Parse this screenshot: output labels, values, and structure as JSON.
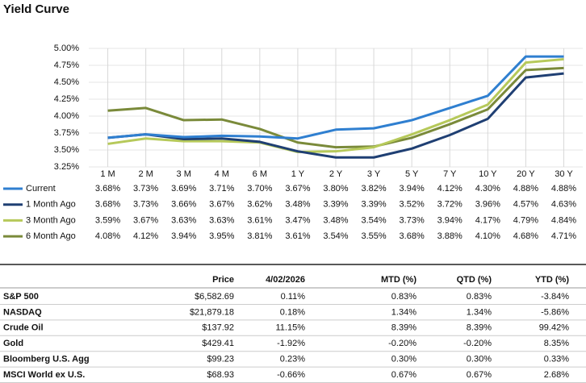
{
  "chart_data": {
    "type": "line",
    "title": "Yield Curve",
    "categories": [
      "1 M",
      "2 M",
      "3 M",
      "4 M",
      "6 M",
      "1 Y",
      "2 Y",
      "3 Y",
      "5 Y",
      "7 Y",
      "10 Y",
      "20 Y",
      "30 Y"
    ],
    "ylim": [
      3.25,
      5.0
    ],
    "yticks": [
      {
        "value": 3.25,
        "label": "3.25%"
      },
      {
        "value": 3.5,
        "label": "3.50%"
      },
      {
        "value": 3.75,
        "label": "3.75%"
      },
      {
        "value": 4.0,
        "label": "4.00%"
      },
      {
        "value": 4.25,
        "label": "4.25%"
      },
      {
        "value": 4.5,
        "label": "4.50%"
      },
      {
        "value": 4.75,
        "label": "4.75%"
      },
      {
        "value": 5.0,
        "label": "5.00%"
      }
    ],
    "grid": true,
    "series": [
      {
        "name": "Current",
        "color": "#2f7fd0",
        "values": [
          3.68,
          3.73,
          3.69,
          3.71,
          3.7,
          3.67,
          3.8,
          3.82,
          3.94,
          4.12,
          4.3,
          4.88,
          4.88
        ],
        "value_labels": [
          "3.68%",
          "3.73%",
          "3.69%",
          "3.71%",
          "3.70%",
          "3.67%",
          "3.80%",
          "3.82%",
          "3.94%",
          "4.12%",
          "4.30%",
          "4.88%",
          "4.88%"
        ]
      },
      {
        "name": "1 Month Ago",
        "color": "#1f3f73",
        "values": [
          3.68,
          3.73,
          3.66,
          3.67,
          3.62,
          3.48,
          3.39,
          3.39,
          3.52,
          3.72,
          3.96,
          4.57,
          4.63
        ],
        "value_labels": [
          "3.68%",
          "3.73%",
          "3.66%",
          "3.67%",
          "3.62%",
          "3.48%",
          "3.39%",
          "3.39%",
          "3.52%",
          "3.72%",
          "3.96%",
          "4.57%",
          "4.63%"
        ]
      },
      {
        "name": "3 Month Ago",
        "color": "#b6c95a",
        "values": [
          3.59,
          3.67,
          3.63,
          3.63,
          3.61,
          3.47,
          3.48,
          3.54,
          3.73,
          3.94,
          4.17,
          4.79,
          4.84
        ],
        "value_labels": [
          "3.59%",
          "3.67%",
          "3.63%",
          "3.63%",
          "3.61%",
          "3.47%",
          "3.48%",
          "3.54%",
          "3.73%",
          "3.94%",
          "4.17%",
          "4.79%",
          "4.84%"
        ]
      },
      {
        "name": "6 Month Ago",
        "color": "#7a8a3a",
        "values": [
          4.08,
          4.12,
          3.94,
          3.95,
          3.81,
          3.61,
          3.54,
          3.55,
          3.68,
          3.88,
          4.1,
          4.68,
          4.71
        ],
        "value_labels": [
          "4.08%",
          "4.12%",
          "3.94%",
          "3.95%",
          "3.81%",
          "3.61%",
          "3.54%",
          "3.55%",
          "3.68%",
          "3.88%",
          "4.10%",
          "4.68%",
          "4.71%"
        ]
      }
    ]
  },
  "table": {
    "headers": [
      "",
      "Price",
      "4/02/2026",
      "MTD (%)",
      "QTD (%)",
      "YTD (%)"
    ],
    "rows": [
      [
        "S&P 500",
        "$6,582.69",
        "0.11%",
        "0.83%",
        "0.83%",
        "-3.84%"
      ],
      [
        "NASDAQ",
        "$21,879.18",
        "0.18%",
        "1.34%",
        "1.34%",
        "-5.86%"
      ],
      [
        "Crude Oil",
        "$137.92",
        "11.15%",
        "8.39%",
        "8.39%",
        "99.42%"
      ],
      [
        "Gold",
        "$429.41",
        "-1.92%",
        "-0.20%",
        "-0.20%",
        "8.35%"
      ],
      [
        "Bloomberg U.S. Agg",
        "$99.23",
        "0.23%",
        "0.30%",
        "0.30%",
        "0.33%"
      ],
      [
        "MSCI World ex U.S.",
        "$68.93",
        "-0.66%",
        "0.67%",
        "0.67%",
        "2.68%"
      ]
    ]
  }
}
